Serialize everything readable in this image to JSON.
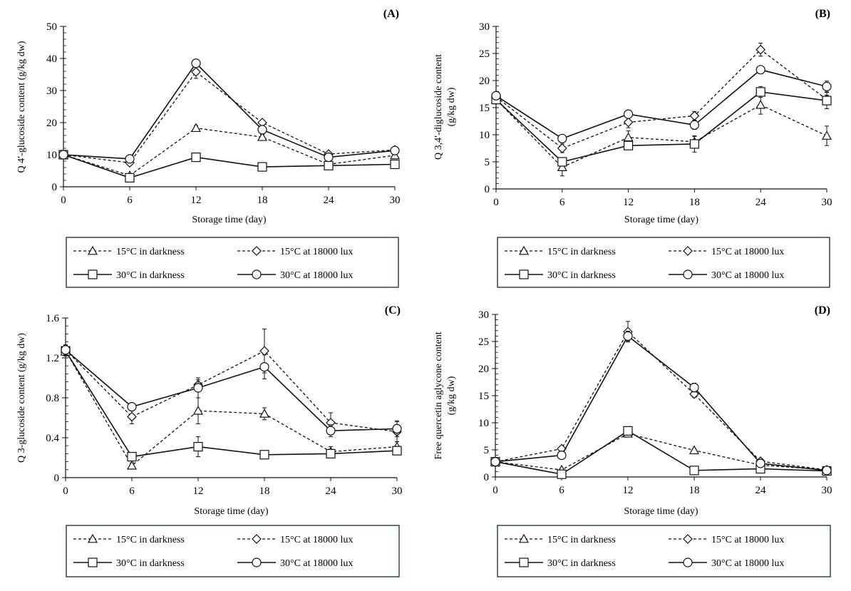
{
  "figure": {
    "legend_entries": [
      {
        "key": "t15d",
        "label": "15°C in darkness",
        "marker": "triangle",
        "dash": true
      },
      {
        "key": "t15l",
        "label": "15°C at 18000 lux",
        "marker": "diamond",
        "dash": true
      },
      {
        "key": "t30d",
        "label": "30°C in darkness",
        "marker": "square",
        "dash": false
      },
      {
        "key": "t30l",
        "label": "30°C at 18000 lux",
        "marker": "circle",
        "dash": false
      }
    ],
    "colors": {
      "line": "#111111",
      "legend_border": "#1f3a3d"
    }
  },
  "chart_data": [
    {
      "type": "line",
      "panel": "(A)",
      "title": "",
      "xlabel": "Storage time (day)",
      "ylabel": [
        "Q 4′-glucoside content (g/kg dw)"
      ],
      "x": [
        0,
        6,
        12,
        18,
        24,
        30
      ],
      "xticks": [
        "0",
        "6",
        "12",
        "18",
        "24",
        "30"
      ],
      "yticks": [
        "0",
        "10",
        "20",
        "30",
        "40",
        "50"
      ],
      "ylim": [
        0,
        50
      ],
      "grid": false,
      "legend_position": "below",
      "series": [
        {
          "name": "15°C in darkness",
          "values": [
            10,
            3.5,
            18.3,
            15.5,
            7,
            9.8
          ],
          "err": [
            0.5,
            0.5,
            0.8,
            0.8,
            0.5,
            0.5
          ]
        },
        {
          "name": "15°C at 18000 lux",
          "values": [
            10,
            7.5,
            35.8,
            20,
            10.2,
            11.5
          ],
          "err": [
            0.5,
            0.8,
            2,
            0.8,
            0.5,
            0.5
          ]
        },
        {
          "name": "30°C in darkness",
          "values": [
            10,
            2.8,
            9.2,
            6.2,
            6.6,
            7
          ],
          "err": [
            0.5,
            0.4,
            0.6,
            0.5,
            0.4,
            0.4
          ]
        },
        {
          "name": "30°C at 18000 lux",
          "values": [
            10,
            8.7,
            38.5,
            17.8,
            9.2,
            11.3
          ],
          "err": [
            0.5,
            0.5,
            0.7,
            0.8,
            0.5,
            0.5
          ]
        }
      ]
    },
    {
      "type": "line",
      "panel": "(B)",
      "title": "",
      "xlabel": "Storage time (day)",
      "ylabel": [
        "Q 3,4′-diglucoside content",
        "(g/kg dw)"
      ],
      "x": [
        0,
        6,
        12,
        18,
        24,
        30
      ],
      "xticks": [
        "0",
        "6",
        "12",
        "18",
        "24",
        "30"
      ],
      "yticks": [
        "0",
        "5",
        "10",
        "15",
        "20",
        "25",
        "30"
      ],
      "ylim": [
        0,
        30
      ],
      "grid": false,
      "legend_position": "below",
      "series": [
        {
          "name": "15°C in darkness",
          "values": [
            16.5,
            4,
            9.5,
            8.7,
            15.5,
            9.8
          ],
          "err": [
            0.8,
            1.6,
            1.2,
            1.0,
            1.7,
            1.8
          ]
        },
        {
          "name": "15°C at 18000 lux",
          "values": [
            17,
            7.5,
            12.3,
            13.5,
            25.7,
            16.5
          ],
          "err": [
            0.8,
            0.8,
            1.0,
            0.8,
            1.2,
            0.8
          ]
        },
        {
          "name": "30°C in darkness",
          "values": [
            16.5,
            5,
            8,
            8.3,
            17.9,
            16.3
          ],
          "err": [
            0.6,
            0.6,
            0.5,
            1.5,
            1.0,
            1.5
          ]
        },
        {
          "name": "30°C at 18000 lux",
          "values": [
            17.2,
            9.3,
            13.8,
            11.8,
            22,
            18.9
          ],
          "err": [
            0.6,
            0.4,
            0.4,
            0.8,
            0.4,
            1.0
          ]
        }
      ]
    },
    {
      "type": "line",
      "panel": "(C)",
      "title": "",
      "xlabel": "Storage time (day)",
      "ylabel": [
        "Q 3-glucoside content (g/kg dw)"
      ],
      "x": [
        0,
        6,
        12,
        18,
        24,
        30
      ],
      "xticks": [
        "0",
        "6",
        "12",
        "18",
        "24",
        "30"
      ],
      "yticks": [
        "0",
        "0.4",
        "0.8",
        "1.2",
        "1.6"
      ],
      "ylim": [
        0,
        1.6
      ],
      "grid": false,
      "legend_position": "below",
      "series": [
        {
          "name": "15°C in darkness",
          "values": [
            1.27,
            0.12,
            0.67,
            0.64,
            0.26,
            0.31
          ],
          "err": [
            0.05,
            0.03,
            0.13,
            0.06,
            0.05,
            0.05
          ]
        },
        {
          "name": "15°C at 18000 lux",
          "values": [
            1.28,
            0.61,
            0.93,
            1.27,
            0.55,
            0.46
          ],
          "err": [
            0.05,
            0.07,
            0.05,
            0.22,
            0.1,
            0.1
          ]
        },
        {
          "name": "30°C in darkness",
          "values": [
            1.27,
            0.21,
            0.31,
            0.23,
            0.24,
            0.27
          ],
          "err": [
            0.05,
            0.04,
            0.1,
            0.03,
            0.03,
            0.03
          ]
        },
        {
          "name": "30°C at 18000 lux",
          "values": [
            1.28,
            0.71,
            0.9,
            1.11,
            0.47,
            0.49
          ],
          "err": [
            0.05,
            0.04,
            0.1,
            0.12,
            0.06,
            0.08
          ]
        }
      ]
    },
    {
      "type": "line",
      "panel": "(D)",
      "title": "",
      "xlabel": "Storage time (day)",
      "ylabel": [
        "Free quercetin aglycone content",
        "(g/kg dw)"
      ],
      "x": [
        0,
        6,
        12,
        18,
        24,
        30
      ],
      "xticks": [
        "0",
        "6",
        "12",
        "18",
        "24",
        "30"
      ],
      "yticks": [
        "0",
        "5",
        "10",
        "15",
        "20",
        "25",
        "30"
      ],
      "ylim": [
        0,
        30
      ],
      "grid": false,
      "legend_position": "below",
      "series": [
        {
          "name": "15°C in darkness",
          "values": [
            2.8,
            1.3,
            8,
            4.9,
            2.2,
            1.3
          ],
          "err": [
            0.3,
            0.3,
            0.5,
            0.3,
            0.3,
            0.2
          ]
        },
        {
          "name": "15°C at 18000 lux",
          "values": [
            2.8,
            5.2,
            26.8,
            15.3,
            2.9,
            1.3
          ],
          "err": [
            0.3,
            0.4,
            1.9,
            0.6,
            0.3,
            0.2
          ]
        },
        {
          "name": "30°C in darkness",
          "values": [
            2.8,
            0.5,
            8.5,
            1.2,
            1.5,
            1.1
          ],
          "err": [
            0.3,
            0.2,
            0.6,
            0.2,
            0.2,
            0.2
          ]
        },
        {
          "name": "30°C at 18000 lux",
          "values": [
            2.8,
            4,
            26,
            16.5,
            2.5,
            1.2
          ],
          "err": [
            0.3,
            0.4,
            0.9,
            0.8,
            0.3,
            0.2
          ]
        }
      ]
    }
  ]
}
